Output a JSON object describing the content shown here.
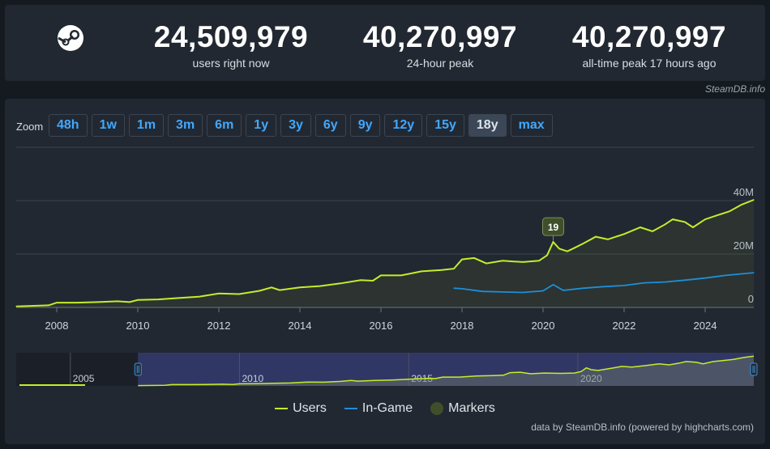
{
  "stats": [
    {
      "value": "24,509,979",
      "label": "users right now"
    },
    {
      "value": "40,270,997",
      "label": "24-hour peak"
    },
    {
      "value": "40,270,997",
      "label": "all-time peak 17 hours ago"
    }
  ],
  "credit_top": "SteamDB.info",
  "zoom": {
    "label": "Zoom",
    "buttons": [
      "48h",
      "1w",
      "1m",
      "3m",
      "6m",
      "1y",
      "3y",
      "6y",
      "9y",
      "12y",
      "15y",
      "18y",
      "max"
    ],
    "active": "18y"
  },
  "credit_bottom": "data by SteamDB.info (powered by highcharts.com)",
  "colors": {
    "users": "#c4ed2b",
    "ingame": "#1e8fd8",
    "marker": "#3f4f2a"
  },
  "chart_data": {
    "type": "line",
    "xlabel": "",
    "ylabel": "",
    "xlim": [
      2007.0,
      2025.2
    ],
    "ylim": [
      0,
      40000000
    ],
    "x_ticks": [
      "2008",
      "2010",
      "2012",
      "2014",
      "2016",
      "2018",
      "2020",
      "2022",
      "2024"
    ],
    "y_ticks": [
      "0",
      "20M",
      "40M"
    ],
    "series": [
      {
        "name": "Users",
        "x": [
          2007.0,
          2007.8,
          2008.0,
          2008.5,
          2009.0,
          2009.5,
          2009.8,
          2010.0,
          2010.5,
          2011.0,
          2011.5,
          2012.0,
          2012.5,
          2013.0,
          2013.3,
          2013.5,
          2014.0,
          2014.5,
          2015.0,
          2015.5,
          2015.8,
          2016.0,
          2016.5,
          2017.0,
          2017.5,
          2017.8,
          2018.0,
          2018.3,
          2018.6,
          2019.0,
          2019.5,
          2019.9,
          2020.1,
          2020.25,
          2020.4,
          2020.6,
          2020.8,
          2021.0,
          2021.3,
          2021.6,
          2022.0,
          2022.4,
          2022.7,
          2023.0,
          2023.2,
          2023.5,
          2023.7,
          2024.0,
          2024.3,
          2024.6,
          2024.9,
          2025.2
        ],
        "y": [
          400000,
          800000,
          1800000,
          1800000,
          2000000,
          2300000,
          2000000,
          2800000,
          3000000,
          3500000,
          4000000,
          5200000,
          5000000,
          6200000,
          7500000,
          6500000,
          7500000,
          8000000,
          9000000,
          10200000,
          10000000,
          12000000,
          12000000,
          13500000,
          14000000,
          14500000,
          18000000,
          18500000,
          16500000,
          17500000,
          17000000,
          17500000,
          19500000,
          24500000,
          22000000,
          21000000,
          22500000,
          24000000,
          26500000,
          25500000,
          27500000,
          30000000,
          28500000,
          31000000,
          33000000,
          32000000,
          30000000,
          33000000,
          34500000,
          36000000,
          38500000,
          40300000
        ]
      },
      {
        "name": "In-Game",
        "x": [
          2017.8,
          2018.0,
          2018.5,
          2019.0,
          2019.5,
          2020.0,
          2020.25,
          2020.5,
          2021.0,
          2021.5,
          2022.0,
          2022.5,
          2023.0,
          2023.5,
          2024.0,
          2024.5,
          2025.2
        ],
        "y": [
          7200000,
          7000000,
          6000000,
          5800000,
          5600000,
          6200000,
          8500000,
          6400000,
          7200000,
          7800000,
          8200000,
          9200000,
          9500000,
          10200000,
          11000000,
          12000000,
          13000000
        ]
      }
    ],
    "markers": [
      {
        "x": 2020.25,
        "label": "19"
      }
    ],
    "navigator": {
      "x_labels": [
        {
          "x": 2005,
          "label": "2005"
        },
        {
          "x": 2010,
          "label": "2010"
        },
        {
          "x": 2015,
          "label": "2015"
        },
        {
          "x": 2020,
          "label": "2020"
        }
      ],
      "selected_range": [
        2007.0,
        2025.2
      ]
    }
  },
  "legend": [
    {
      "name": "Users",
      "color": "#c4ed2b",
      "symbol": "line"
    },
    {
      "name": "In-Game",
      "color": "#1e8fd8",
      "symbol": "line"
    },
    {
      "name": "Markers",
      "color": "#3f4f2a",
      "symbol": "circle"
    }
  ]
}
